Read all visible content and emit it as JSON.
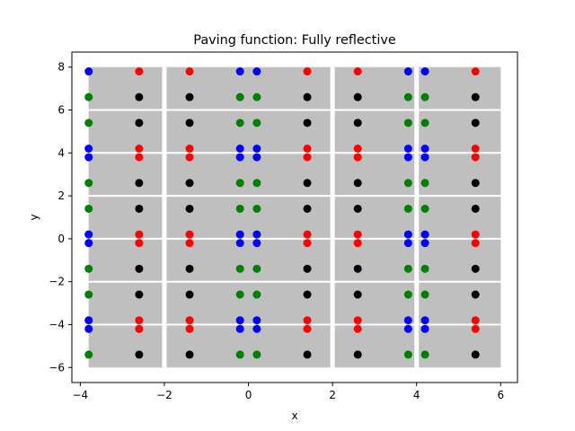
{
  "chart_data": {
    "type": "scatter",
    "title": "Paving function: Fully reflective",
    "xlabel": "x",
    "ylabel": "y",
    "xlim": [
      -4.2,
      6.4
    ],
    "ylim": [
      -6.7,
      8.7
    ],
    "xticks": [
      -4,
      -2,
      0,
      2,
      4,
      6
    ],
    "yticks": [
      -6,
      -4,
      -2,
      0,
      2,
      4,
      6,
      8
    ],
    "xtick_labels": [
      "−4",
      "−2",
      "0",
      "2",
      "4",
      "6"
    ],
    "ytick_labels": [
      "−6",
      "−4",
      "−2",
      "0",
      "2",
      "4",
      "6",
      "8"
    ],
    "grid": false,
    "legend": "none",
    "background_tiles": {
      "color": "#bfbfbf",
      "tile_x_edges": [
        -3.8,
        -2.0,
        0.0,
        2.0,
        4.0,
        6.0
      ],
      "x_gaps": [
        -2.0,
        2.0,
        4.0
      ],
      "tile_y_edges": [
        -6.0,
        -4.0,
        -2.0,
        0.0,
        2.0,
        4.0,
        6.0,
        8.0
      ],
      "gap_color": "#ffffff"
    },
    "series": [
      {
        "color": "#0000ff",
        "points": [
          [
            -3.8,
            7.8
          ],
          [
            -3.8,
            4.2
          ],
          [
            -3.8,
            3.8
          ],
          [
            -3.8,
            0.2
          ],
          [
            -3.8,
            -0.2
          ],
          [
            -3.8,
            -3.8
          ],
          [
            -3.8,
            -4.2
          ],
          [
            -0.2,
            7.8
          ],
          [
            -0.2,
            4.2
          ],
          [
            -0.2,
            3.8
          ],
          [
            -0.2,
            0.2
          ],
          [
            -0.2,
            -0.2
          ],
          [
            -0.2,
            -3.8
          ],
          [
            -0.2,
            -4.2
          ],
          [
            0.2,
            7.8
          ],
          [
            0.2,
            4.2
          ],
          [
            0.2,
            3.8
          ],
          [
            0.2,
            0.2
          ],
          [
            0.2,
            -0.2
          ],
          [
            0.2,
            -3.8
          ],
          [
            0.2,
            -4.2
          ],
          [
            3.8,
            7.8
          ],
          [
            3.8,
            4.2
          ],
          [
            3.8,
            3.8
          ],
          [
            3.8,
            0.2
          ],
          [
            3.8,
            -0.2
          ],
          [
            3.8,
            -3.8
          ],
          [
            3.8,
            -4.2
          ],
          [
            4.2,
            7.8
          ],
          [
            4.2,
            4.2
          ],
          [
            4.2,
            3.8
          ],
          [
            4.2,
            0.2
          ],
          [
            4.2,
            -0.2
          ],
          [
            4.2,
            -3.8
          ],
          [
            4.2,
            -4.2
          ]
        ]
      },
      {
        "color": "#ff0000",
        "points": [
          [
            -2.6,
            7.8
          ],
          [
            -2.6,
            4.2
          ],
          [
            -2.6,
            3.8
          ],
          [
            -2.6,
            0.2
          ],
          [
            -2.6,
            -0.2
          ],
          [
            -2.6,
            -3.8
          ],
          [
            -2.6,
            -4.2
          ],
          [
            -1.4,
            7.8
          ],
          [
            -1.4,
            4.2
          ],
          [
            -1.4,
            3.8
          ],
          [
            -1.4,
            0.2
          ],
          [
            -1.4,
            -0.2
          ],
          [
            -1.4,
            -3.8
          ],
          [
            -1.4,
            -4.2
          ],
          [
            1.4,
            7.8
          ],
          [
            1.4,
            4.2
          ],
          [
            1.4,
            3.8
          ],
          [
            1.4,
            0.2
          ],
          [
            1.4,
            -0.2
          ],
          [
            1.4,
            -3.8
          ],
          [
            1.4,
            -4.2
          ],
          [
            2.6,
            7.8
          ],
          [
            2.6,
            4.2
          ],
          [
            2.6,
            3.8
          ],
          [
            2.6,
            0.2
          ],
          [
            2.6,
            -0.2
          ],
          [
            2.6,
            -3.8
          ],
          [
            2.6,
            -4.2
          ],
          [
            5.4,
            7.8
          ],
          [
            5.4,
            4.2
          ],
          [
            5.4,
            3.8
          ],
          [
            5.4,
            0.2
          ],
          [
            5.4,
            -0.2
          ],
          [
            5.4,
            -3.8
          ],
          [
            5.4,
            -4.2
          ]
        ]
      },
      {
        "color": "#008000",
        "points": [
          [
            -3.8,
            6.6
          ],
          [
            -3.8,
            5.4
          ],
          [
            -3.8,
            2.6
          ],
          [
            -3.8,
            1.4
          ],
          [
            -3.8,
            -1.4
          ],
          [
            -3.8,
            -2.6
          ],
          [
            -3.8,
            -5.4
          ],
          [
            -0.2,
            6.6
          ],
          [
            -0.2,
            5.4
          ],
          [
            -0.2,
            2.6
          ],
          [
            -0.2,
            1.4
          ],
          [
            -0.2,
            -1.4
          ],
          [
            -0.2,
            -2.6
          ],
          [
            -0.2,
            -5.4
          ],
          [
            0.2,
            6.6
          ],
          [
            0.2,
            5.4
          ],
          [
            0.2,
            2.6
          ],
          [
            0.2,
            1.4
          ],
          [
            0.2,
            -1.4
          ],
          [
            0.2,
            -2.6
          ],
          [
            0.2,
            -5.4
          ],
          [
            3.8,
            6.6
          ],
          [
            3.8,
            5.4
          ],
          [
            3.8,
            2.6
          ],
          [
            3.8,
            1.4
          ],
          [
            3.8,
            -1.4
          ],
          [
            3.8,
            -2.6
          ],
          [
            3.8,
            -5.4
          ],
          [
            4.2,
            6.6
          ],
          [
            4.2,
            5.4
          ],
          [
            4.2,
            2.6
          ],
          [
            4.2,
            1.4
          ],
          [
            4.2,
            -1.4
          ],
          [
            4.2,
            -2.6
          ],
          [
            4.2,
            -5.4
          ]
        ]
      },
      {
        "color": "#000000",
        "points": [
          [
            -2.6,
            6.6
          ],
          [
            -2.6,
            5.4
          ],
          [
            -2.6,
            2.6
          ],
          [
            -2.6,
            1.4
          ],
          [
            -2.6,
            -1.4
          ],
          [
            -2.6,
            -2.6
          ],
          [
            -2.6,
            -5.4
          ],
          [
            -1.4,
            6.6
          ],
          [
            -1.4,
            5.4
          ],
          [
            -1.4,
            2.6
          ],
          [
            -1.4,
            1.4
          ],
          [
            -1.4,
            -1.4
          ],
          [
            -1.4,
            -2.6
          ],
          [
            -1.4,
            -5.4
          ],
          [
            1.4,
            6.6
          ],
          [
            1.4,
            5.4
          ],
          [
            1.4,
            2.6
          ],
          [
            1.4,
            1.4
          ],
          [
            1.4,
            -1.4
          ],
          [
            1.4,
            -2.6
          ],
          [
            1.4,
            -5.4
          ],
          [
            2.6,
            6.6
          ],
          [
            2.6,
            5.4
          ],
          [
            2.6,
            2.6
          ],
          [
            2.6,
            1.4
          ],
          [
            2.6,
            -1.4
          ],
          [
            2.6,
            -2.6
          ],
          [
            2.6,
            -5.4
          ],
          [
            5.4,
            6.6
          ],
          [
            5.4,
            5.4
          ],
          [
            5.4,
            2.6
          ],
          [
            5.4,
            1.4
          ],
          [
            5.4,
            -1.4
          ],
          [
            5.4,
            -2.6
          ],
          [
            5.4,
            -5.4
          ]
        ]
      }
    ]
  }
}
